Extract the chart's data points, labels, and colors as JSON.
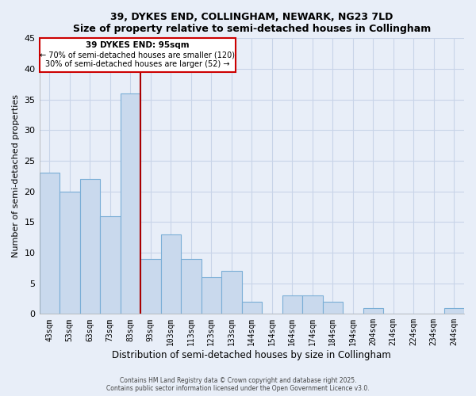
{
  "title": "39, DYKES END, COLLINGHAM, NEWARK, NG23 7LD",
  "subtitle": "Size of property relative to semi-detached houses in Collingham",
  "xlabel": "Distribution of semi-detached houses by size in Collingham",
  "ylabel": "Number of semi-detached properties",
  "bar_labels": [
    "43sqm",
    "53sqm",
    "63sqm",
    "73sqm",
    "83sqm",
    "93sqm",
    "103sqm",
    "113sqm",
    "123sqm",
    "133sqm",
    "144sqm",
    "154sqm",
    "164sqm",
    "174sqm",
    "184sqm",
    "194sqm",
    "204sqm",
    "214sqm",
    "224sqm",
    "234sqm",
    "244sqm"
  ],
  "bar_values": [
    23,
    20,
    22,
    16,
    36,
    9,
    13,
    9,
    6,
    7,
    2,
    0,
    3,
    3,
    2,
    0,
    1,
    0,
    0,
    0,
    1
  ],
  "bar_color": "#c9d9ed",
  "bar_edge_color": "#7aaed6",
  "ylim": [
    0,
    45
  ],
  "yticks": [
    0,
    5,
    10,
    15,
    20,
    25,
    30,
    35,
    40,
    45
  ],
  "property_line_color": "#aa0000",
  "annotation_title": "39 DYKES END: 95sqm",
  "annotation_line1": "← 70% of semi-detached houses are smaller (120)",
  "annotation_line2": "30% of semi-detached houses are larger (52) →",
  "annotation_box_color": "#cc0000",
  "background_color": "#e8eef8",
  "grid_color": "#c8d4e8",
  "footer1": "Contains HM Land Registry data © Crown copyright and database right 2025.",
  "footer2": "Contains public sector information licensed under the Open Government Licence v3.0."
}
